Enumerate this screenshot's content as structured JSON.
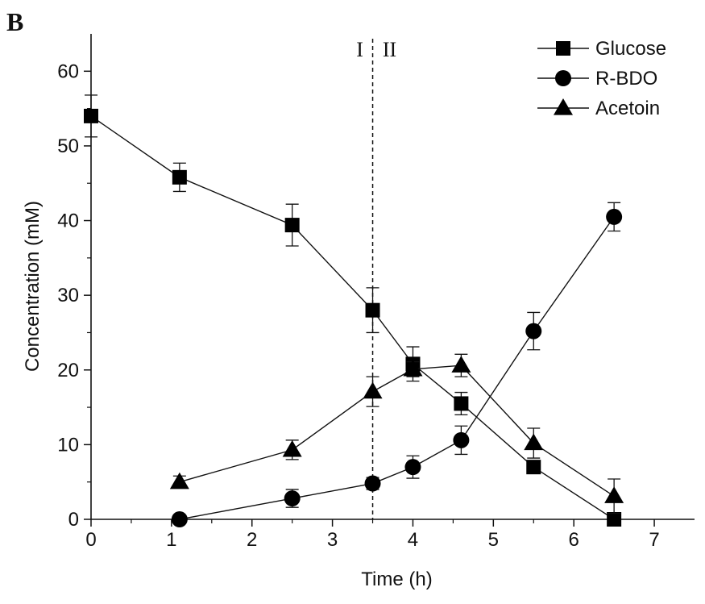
{
  "panel_label": "B",
  "chart_data": {
    "type": "line",
    "xlabel": "Time (h)",
    "ylabel": "Concentration (mM)",
    "xlim": [
      0,
      7.5
    ],
    "ylim": [
      0,
      65
    ],
    "xticks": [
      0,
      1,
      2,
      3,
      4,
      5,
      6,
      7
    ],
    "yticks": [
      0,
      10,
      20,
      30,
      40,
      50,
      60
    ],
    "grid": false,
    "legend_position": "top-right",
    "phase_divider": {
      "x": 3.5,
      "labels": [
        "I",
        "II"
      ]
    },
    "series": [
      {
        "name": "Glucose",
        "marker": "square",
        "x": [
          0,
          1.1,
          2.5,
          3.5,
          4.0,
          4.6,
          5.5,
          6.5
        ],
        "y": [
          54.0,
          45.8,
          39.4,
          28.0,
          20.8,
          15.5,
          7.0,
          0.0
        ],
        "err": [
          2.8,
          1.9,
          2.8,
          3.0,
          2.3,
          1.5,
          0.5,
          0.4
        ]
      },
      {
        "name": "R-BDO",
        "marker": "circle",
        "x": [
          1.1,
          2.5,
          3.5,
          4.0,
          4.6,
          5.5,
          6.5
        ],
        "y": [
          0.0,
          2.8,
          4.8,
          7.0,
          10.6,
          25.2,
          40.5
        ],
        "err": [
          0.4,
          1.2,
          0.8,
          1.5,
          1.9,
          2.5,
          1.9
        ]
      },
      {
        "name": "Acetoin",
        "marker": "triangle",
        "x": [
          1.1,
          2.5,
          3.5,
          4.0,
          4.6,
          5.5,
          6.5
        ],
        "y": [
          5.0,
          9.3,
          17.1,
          20.1,
          20.6,
          10.2,
          3.1
        ],
        "err": [
          0.8,
          1.3,
          2.0,
          1.0,
          1.5,
          2.0,
          2.3
        ]
      }
    ]
  }
}
